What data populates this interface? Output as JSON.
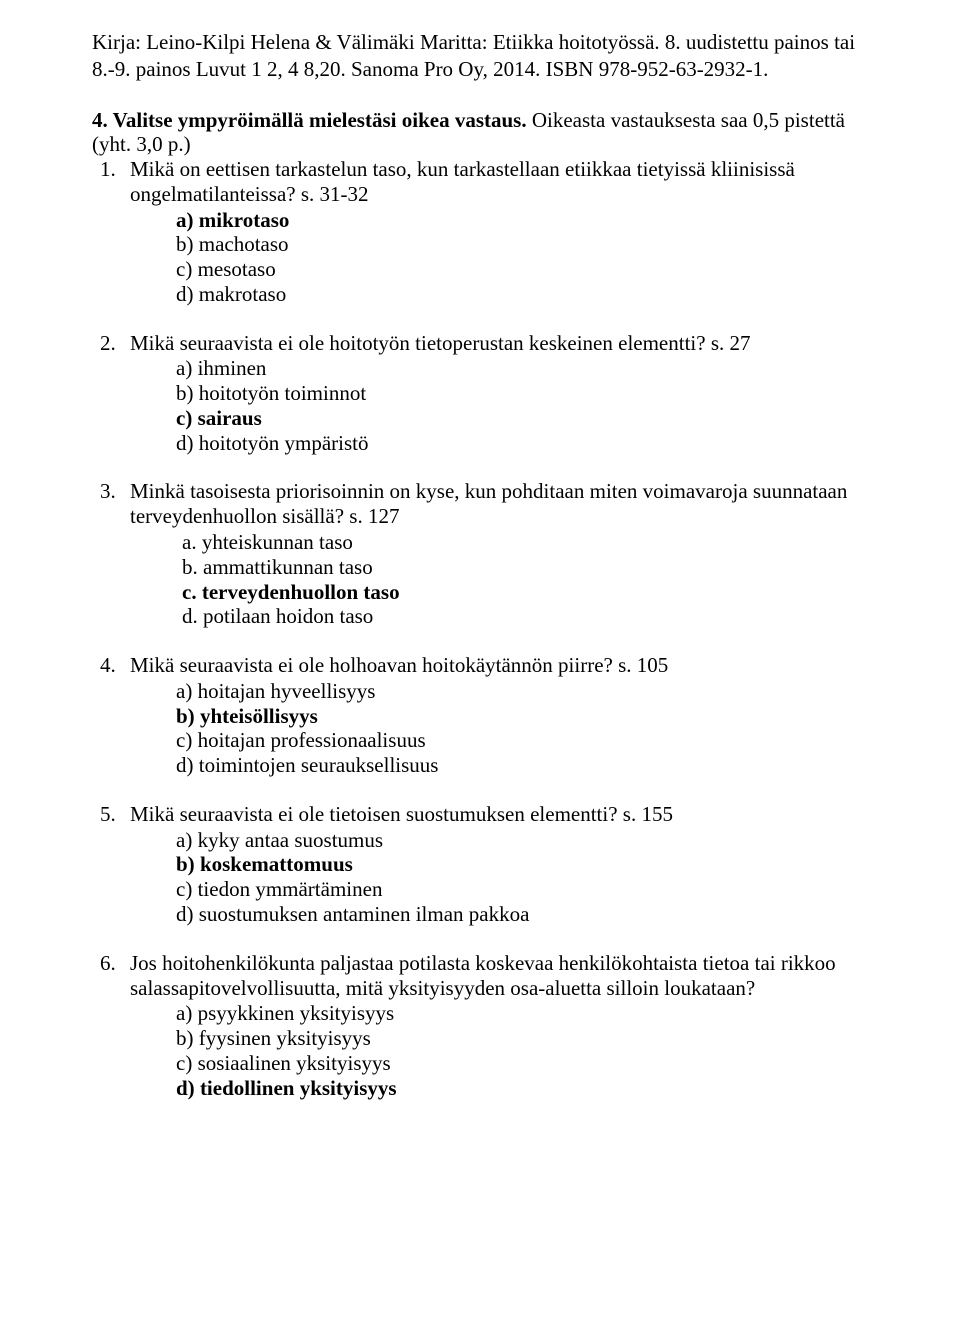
{
  "header": {
    "line1": "Kirja: Leino-Kilpi Helena & Välimäki Maritta: Etiikka hoitotyössä. 8. uudistettu painos tai",
    "line2": "8.-9. painos Luvut 1 2, 4 8,20. Sanoma Pro Oy, 2014. ISBN 978-952-63-2932-1."
  },
  "section": {
    "title_prefix": "4. Valitse ympyröimällä mielestäsi oikea vastaus.",
    "title_suffix": " Oikeasta vastauksesta saa 0,5 pistettä",
    "subtitle": "(yht. 3,0  p.)"
  },
  "questions": [
    {
      "num": "1.",
      "text": "Mikä on eettisen tarkastelun taso, kun tarkastellaan etiikkaa tietyissä kliinisissä ongelmatilanteissa? s. 31-32",
      "style": "paren",
      "options": [
        {
          "label": "a)",
          "text": "mikrotaso",
          "bold": true
        },
        {
          "label": "b)",
          "text": "machotaso",
          "bold": false
        },
        {
          "label": "c)",
          "text": "mesotaso",
          "bold": false
        },
        {
          "label": "d)",
          "text": "makrotaso",
          "bold": false
        }
      ]
    },
    {
      "num": "2.",
      "text": "Mikä seuraavista ei ole hoitotyön tietoperustan keskeinen elementti? s. 27",
      "style": "paren",
      "options": [
        {
          "label": "a)",
          "text": "ihminen",
          "bold": false
        },
        {
          "label": "b)",
          "text": "hoitotyön toiminnot",
          "bold": false
        },
        {
          "label": "c)",
          "text": "sairaus",
          "bold": true
        },
        {
          "label": "d)",
          "text": "hoitotyön ympäristö",
          "bold": false
        }
      ]
    },
    {
      "num": "3.",
      "text": "Minkä tasoisesta priorisoinnin on kyse, kun pohditaan miten voimavaroja suunnataan terveydenhuollon sisällä? s. 127",
      "style": "letters",
      "options": [
        {
          "label": "a.",
          "text": "yhteiskunnan taso",
          "bold": false
        },
        {
          "label": "b.",
          "text": "ammattikunnan taso",
          "bold": false
        },
        {
          "label": "c.",
          "text": "terveydenhuollon taso",
          "bold": true
        },
        {
          "label": "d.",
          "text": "potilaan hoidon taso",
          "bold": false
        }
      ]
    },
    {
      "num": "4.",
      "text": "Mikä seuraavista ei ole holhoavan hoitokäytännön piirre? s. 105",
      "style": "paren",
      "options": [
        {
          "label": "a)",
          "text": "hoitajan hyveellisyys",
          "bold": false
        },
        {
          "label": "b)",
          "text": "yhteisöllisyys",
          "bold": true
        },
        {
          "label": "c)",
          "text": "hoitajan professionaalisuus",
          "bold": false
        },
        {
          "label": "d)",
          "text": "toimintojen seurauksellisuus",
          "bold": false
        }
      ]
    },
    {
      "num": "5.",
      "text": "Mikä seuraavista ei ole tietoisen suostumuksen elementti? s. 155",
      "style": "paren",
      "options": [
        {
          "label": "a)",
          "text": "kyky antaa suostumus",
          "bold": false
        },
        {
          "label": "b)",
          "text": "koskemattomuus",
          "bold": true
        },
        {
          "label": "c)",
          "text": "tiedon ymmärtäminen",
          "bold": false
        },
        {
          "label": "d)",
          "text": "suostumuksen antaminen ilman pakkoa",
          "bold": false
        }
      ]
    },
    {
      "num": "6.",
      "text": "Jos hoitohenkilökunta paljastaa potilasta koskevaa henkilökohtaista tietoa tai rikkoo salassapitovelvollisuutta, mitä yksityisyyden osa-aluetta silloin loukataan?",
      "style": "paren",
      "options": [
        {
          "label": "a)",
          "text": "psyykkinen yksityisyys",
          "bold": false
        },
        {
          "label": "b)",
          "text": "fyysinen yksityisyys",
          "bold": false
        },
        {
          "label": "c)",
          "text": "sosiaalinen yksityisyys",
          "bold": false
        },
        {
          "label": "d)",
          "text": "tiedollinen yksityisyys",
          "bold": true
        }
      ]
    }
  ]
}
